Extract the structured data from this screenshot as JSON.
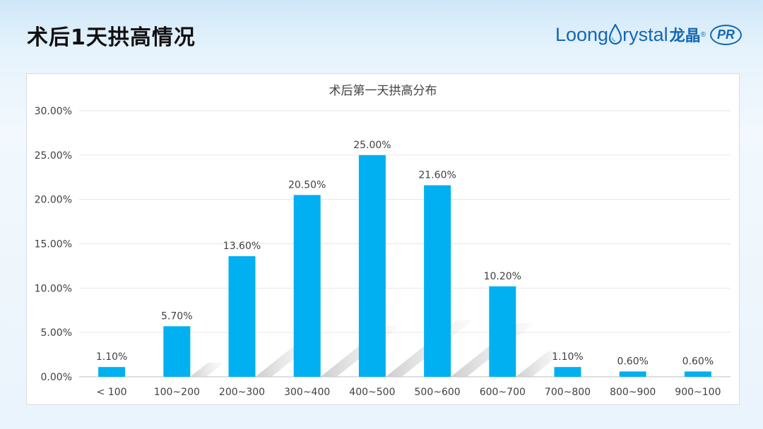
{
  "header": {
    "title": "术后1天拱高情况"
  },
  "logo": {
    "word_pre": "Loong",
    "word_post": "rystal",
    "cn": "龙晶",
    "badge": "PR",
    "reg": "®",
    "color": "#1467b3"
  },
  "chart_data": {
    "type": "bar",
    "title": "术后第一天拱高分布",
    "categories": [
      "< 100",
      "100~200",
      "200~300",
      "300~400",
      "400~500",
      "500~600",
      "600~700",
      "700~800",
      "800~900",
      "900~100"
    ],
    "values": [
      1.1,
      5.7,
      13.6,
      20.5,
      25.0,
      21.6,
      10.2,
      1.1,
      0.6,
      0.6
    ],
    "data_labels": [
      "1.10%",
      "5.70%",
      "13.60%",
      "20.50%",
      "25.00%",
      "21.60%",
      "10.20%",
      "1.10%",
      "0.60%",
      "0.60%"
    ],
    "y_ticks": [
      0,
      5,
      10,
      15,
      20,
      25,
      30
    ],
    "y_tick_labels": [
      "0.00%",
      "5.00%",
      "10.00%",
      "15.00%",
      "20.00%",
      "25.00%",
      "30.00%"
    ],
    "ylim": [
      0,
      30
    ],
    "xlabel": "",
    "ylabel": "",
    "grid": true,
    "legend": "none",
    "bar_color": "#00b0f0"
  }
}
